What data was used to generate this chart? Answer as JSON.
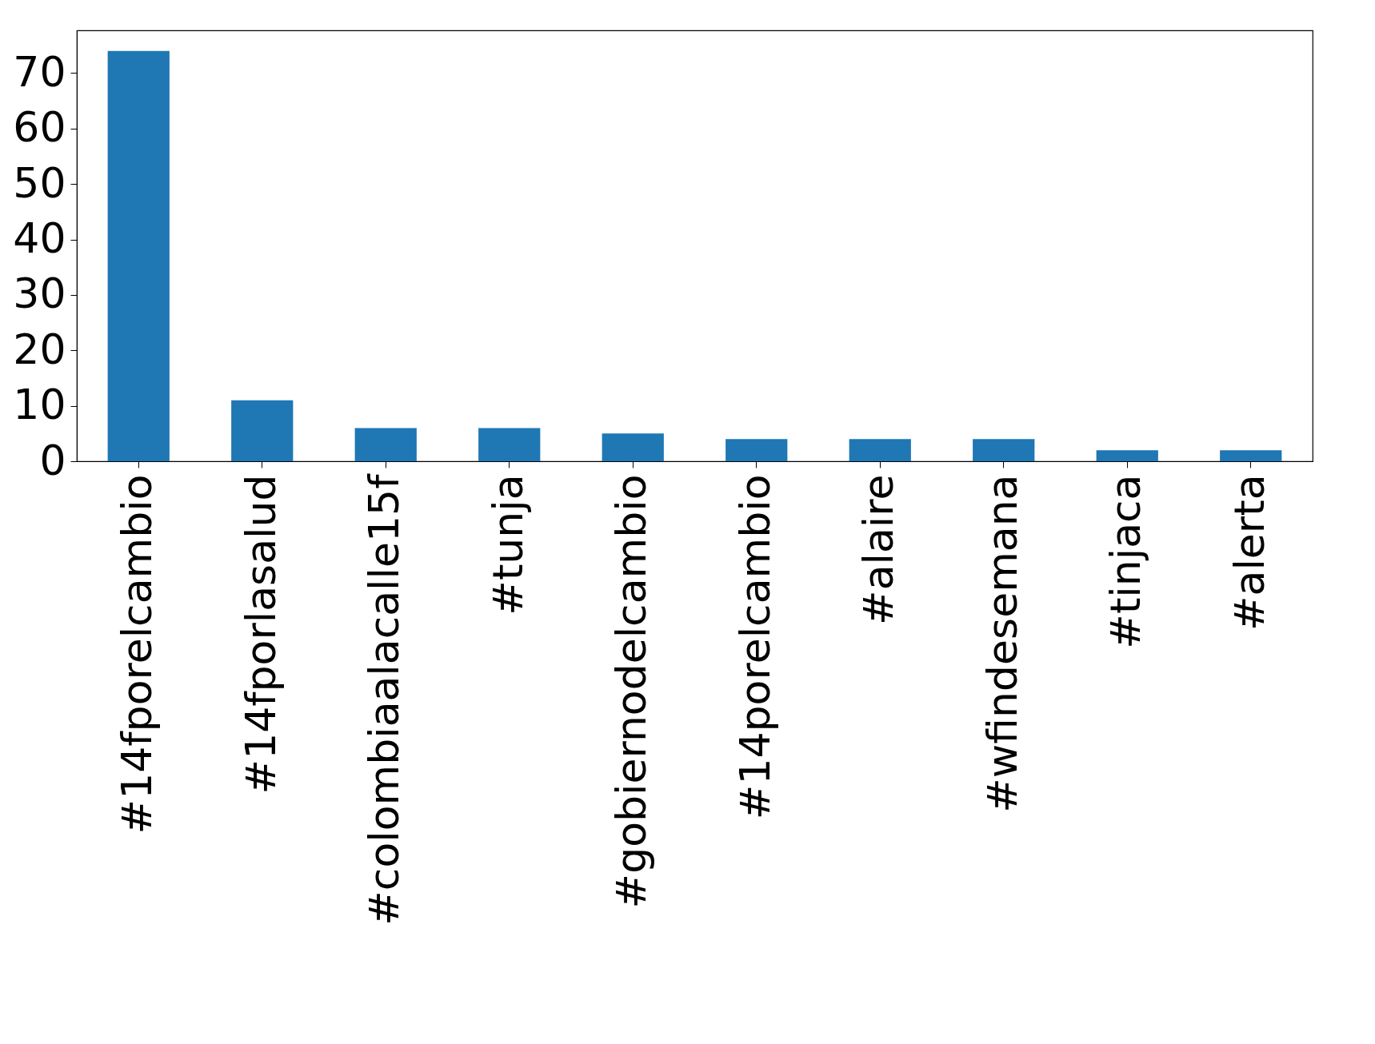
{
  "chart_data": {
    "type": "bar",
    "categories": [
      "#14fporelcambio",
      "#14fporlasalud",
      "#colombiaalacalle15f",
      "#tunja",
      "#gobiernodelcambio",
      "#14porelcambio",
      "#alaire",
      "#wfindesemana",
      "#tinjaca",
      "#alerta"
    ],
    "values": [
      74,
      11,
      6,
      6,
      5,
      4,
      4,
      4,
      2,
      2
    ],
    "color": "#1f77b4",
    "ylim": [
      0,
      77.7
    ],
    "yticks": [
      0,
      10,
      20,
      30,
      40,
      50,
      60,
      70
    ],
    "grid": false
  }
}
